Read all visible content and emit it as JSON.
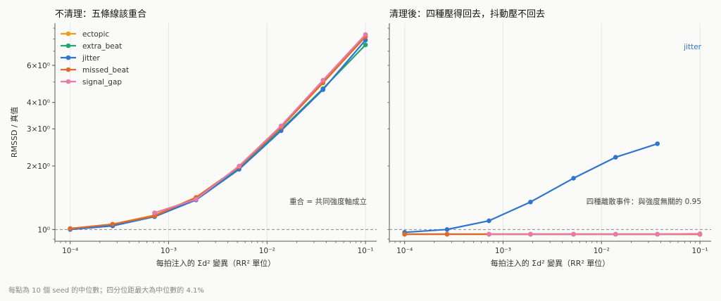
{
  "footnote": "每點為 10 個 seed 的中位數；四分位距最大為中位數的 4.1%",
  "colors": {
    "ectopic": "#e8a21a",
    "extra_beat": "#22a571",
    "jitter": "#2f74cf",
    "missed_beat": "#e06a2c",
    "signal_gap": "#e87aa8"
  },
  "chart_data": [
    {
      "type": "line",
      "title": "不清理：五條線該重合",
      "xlabel": "每拍注入的 Σd² 變異（RR² 單位）",
      "ylabel": "RMSSD / 真值",
      "xscale": "log",
      "yscale": "log",
      "xlim": [
        7e-05,
        0.13
      ],
      "ylim": [
        0.88,
        9.5
      ],
      "xticks": [
        {
          "value": 0.0001,
          "label": "10⁻⁴"
        },
        {
          "value": 0.001,
          "label": "10⁻³"
        },
        {
          "value": 0.01,
          "label": "10⁻²"
        },
        {
          "value": 0.1,
          "label": "10⁻¹"
        }
      ],
      "yticks": [
        {
          "value": 1,
          "label": "10⁰"
        },
        {
          "value": 2,
          "label": "2×10⁰"
        },
        {
          "value": 3,
          "label": "3×10⁰"
        },
        {
          "value": 4,
          "label": "4×10⁰"
        },
        {
          "value": 6,
          "label": "6×10⁰"
        }
      ],
      "reference_line": 1,
      "grid": "x-major",
      "legend": "top-left",
      "annotation": "重合 = 共同強度軸成立",
      "series": [
        {
          "name": "ectopic",
          "x": [
            0.0001,
            0.00027,
            0.00072,
            0.0019,
            0.0052,
            0.0139,
            0.037,
            0.1
          ],
          "y": [
            1.01,
            1.06,
            1.17,
            1.42,
            1.98,
            3.08,
            5.0,
            8.3
          ]
        },
        {
          "name": "extra_beat",
          "x": [
            0.0001,
            0.00027,
            0.00072,
            0.0019,
            0.0052,
            0.0139,
            0.037,
            0.1
          ],
          "y": [
            1.01,
            1.05,
            1.16,
            1.41,
            1.96,
            2.98,
            4.65,
            7.5
          ]
        },
        {
          "name": "jitter",
          "x": [
            0.0001,
            0.00027,
            0.00072,
            0.0019,
            0.0052,
            0.0139,
            0.037,
            0.1
          ],
          "y": [
            1.0,
            1.04,
            1.15,
            1.38,
            1.93,
            2.94,
            4.6,
            7.9
          ]
        },
        {
          "name": "missed_beat",
          "x": [
            0.0001,
            0.00027,
            0.00072,
            0.0019,
            0.0052,
            0.0139,
            0.037,
            0.1
          ],
          "y": [
            1.01,
            1.06,
            1.16,
            1.42,
            1.98,
            3.05,
            4.95,
            8.2
          ]
        },
        {
          "name": "signal_gap",
          "x": [
            0.00072,
            0.0019,
            0.0052,
            0.0139,
            0.037,
            0.1
          ],
          "y": [
            1.2,
            1.39,
            2.0,
            3.1,
            5.1,
            8.4
          ]
        }
      ]
    },
    {
      "type": "line",
      "title": "清理後：四種壓得回去，抖動壓不回去",
      "xlabel": "每拍注入的 Σd² 變異（RR² 單位）",
      "ylabel": "",
      "xscale": "log",
      "yscale": "log",
      "xlim": [
        7e-05,
        0.13
      ],
      "ylim": [
        0.88,
        9.5
      ],
      "xticks": [
        {
          "value": 0.0001,
          "label": "10⁻⁴"
        },
        {
          "value": 0.001,
          "label": "10⁻³"
        },
        {
          "value": 0.01,
          "label": "10⁻²"
        },
        {
          "value": 0.1,
          "label": "10⁻¹"
        }
      ],
      "yticks": [],
      "reference_line": 1,
      "grid": "x-major",
      "series_label": "jitter",
      "annotation": "四種離散事件：與強度無關的 0.95",
      "series": [
        {
          "name": "jitter",
          "x": [
            0.0001,
            0.00027,
            0.00072,
            0.0019,
            0.0052,
            0.0139,
            0.037
          ],
          "y": [
            0.97,
            1.0,
            1.1,
            1.35,
            1.75,
            2.2,
            2.55
          ]
        },
        {
          "name": "ectopic",
          "x": [
            0.0001,
            0.00027,
            0.00072,
            0.0019,
            0.0052,
            0.0139,
            0.037,
            0.1
          ],
          "y": [
            0.95,
            0.95,
            0.95,
            0.95,
            0.95,
            0.95,
            0.95,
            0.95
          ]
        },
        {
          "name": "extra_beat",
          "x": [
            0.0001,
            0.00027,
            0.00072,
            0.0019,
            0.0052,
            0.0139,
            0.037,
            0.1
          ],
          "y": [
            0.95,
            0.95,
            0.95,
            0.95,
            0.95,
            0.95,
            0.95,
            0.95
          ]
        },
        {
          "name": "missed_beat",
          "x": [
            0.0001,
            0.00027,
            0.00072,
            0.0019,
            0.0052,
            0.0139,
            0.037,
            0.1
          ],
          "y": [
            0.95,
            0.95,
            0.95,
            0.95,
            0.95,
            0.95,
            0.95,
            0.95
          ]
        },
        {
          "name": "signal_gap",
          "x": [
            0.00072,
            0.0019,
            0.0052,
            0.0139,
            0.037,
            0.1
          ],
          "y": [
            0.95,
            0.95,
            0.95,
            0.95,
            0.95,
            0.955
          ]
        }
      ]
    }
  ]
}
